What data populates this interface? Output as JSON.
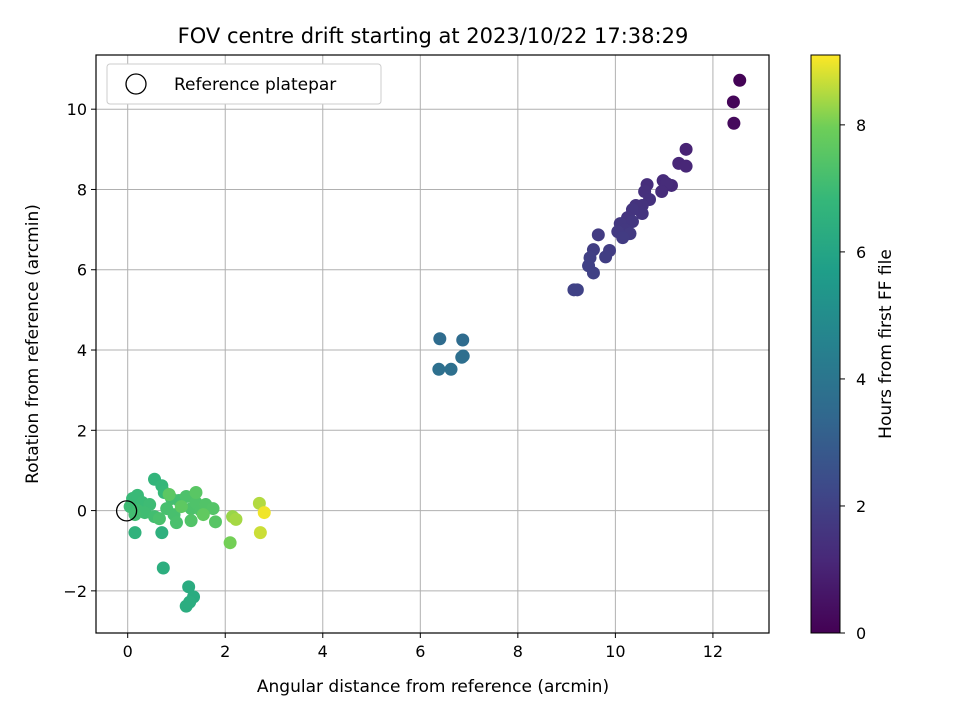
{
  "chart_data": {
    "type": "scatter",
    "title": "FOV centre drift starting at 2023/10/22 17:38:29",
    "xlabel": "Angular distance from reference (arcmin)",
    "ylabel": "Rotation from reference (arcmin)",
    "xlim": [
      -0.65,
      13.15
    ],
    "ylim": [
      -3.05,
      11.35
    ],
    "x_ticks": [
      0,
      2,
      4,
      6,
      8,
      10,
      12
    ],
    "y_ticks": [
      -2,
      0,
      2,
      4,
      6,
      8,
      10
    ],
    "grid": true,
    "legend": {
      "placement": "top-left",
      "entries": [
        "Reference platepar"
      ]
    },
    "reference_point": {
      "x": 0,
      "y": 0,
      "label": "Reference platepar"
    },
    "colorbar": {
      "label": "Hours from first FF file",
      "colormap": "viridis",
      "range": [
        0,
        9.1
      ],
      "ticks": [
        0,
        2,
        4,
        6,
        8
      ]
    },
    "points": [
      {
        "x": 12.55,
        "y": 10.72,
        "c": 0.05
      },
      {
        "x": 12.42,
        "y": 10.18,
        "c": 0.15
      },
      {
        "x": 12.43,
        "y": 9.65,
        "c": 0.25
      },
      {
        "x": 11.45,
        "y": 9.0,
        "c": 1.0
      },
      {
        "x": 11.3,
        "y": 8.65,
        "c": 1.1
      },
      {
        "x": 11.45,
        "y": 8.58,
        "c": 1.1
      },
      {
        "x": 11.15,
        "y": 8.1,
        "c": 1.2
      },
      {
        "x": 10.98,
        "y": 8.22,
        "c": 1.25
      },
      {
        "x": 11.05,
        "y": 8.15,
        "c": 1.3
      },
      {
        "x": 10.95,
        "y": 7.95,
        "c": 1.3
      },
      {
        "x": 10.65,
        "y": 8.12,
        "c": 1.35
      },
      {
        "x": 10.6,
        "y": 7.95,
        "c": 1.4
      },
      {
        "x": 10.7,
        "y": 7.75,
        "c": 1.45
      },
      {
        "x": 10.55,
        "y": 7.6,
        "c": 1.5
      },
      {
        "x": 10.42,
        "y": 7.6,
        "c": 1.5
      },
      {
        "x": 10.55,
        "y": 7.4,
        "c": 1.55
      },
      {
        "x": 10.35,
        "y": 7.5,
        "c": 1.6
      },
      {
        "x": 10.25,
        "y": 7.3,
        "c": 1.6
      },
      {
        "x": 10.35,
        "y": 7.2,
        "c": 1.65
      },
      {
        "x": 10.1,
        "y": 7.15,
        "c": 1.7
      },
      {
        "x": 10.2,
        "y": 7.0,
        "c": 1.7
      },
      {
        "x": 10.3,
        "y": 6.9,
        "c": 1.75
      },
      {
        "x": 10.05,
        "y": 6.95,
        "c": 1.75
      },
      {
        "x": 10.15,
        "y": 6.8,
        "c": 1.8
      },
      {
        "x": 9.65,
        "y": 6.87,
        "c": 1.8
      },
      {
        "x": 9.88,
        "y": 6.48,
        "c": 1.85
      },
      {
        "x": 9.8,
        "y": 6.32,
        "c": 1.9
      },
      {
        "x": 9.55,
        "y": 6.5,
        "c": 1.9
      },
      {
        "x": 9.48,
        "y": 6.3,
        "c": 1.95
      },
      {
        "x": 9.45,
        "y": 6.1,
        "c": 2.0
      },
      {
        "x": 9.55,
        "y": 5.92,
        "c": 2.0
      },
      {
        "x": 9.22,
        "y": 5.5,
        "c": 2.05
      },
      {
        "x": 9.15,
        "y": 5.5,
        "c": 2.05
      },
      {
        "x": 6.4,
        "y": 4.28,
        "c": 3.6
      },
      {
        "x": 6.87,
        "y": 4.25,
        "c": 3.6
      },
      {
        "x": 6.88,
        "y": 3.85,
        "c": 3.7
      },
      {
        "x": 6.85,
        "y": 3.82,
        "c": 3.7
      },
      {
        "x": 6.38,
        "y": 3.52,
        "c": 3.75
      },
      {
        "x": 6.63,
        "y": 3.52,
        "c": 3.75
      },
      {
        "x": 1.25,
        "y": -1.9,
        "c": 6.3
      },
      {
        "x": 1.35,
        "y": -2.15,
        "c": 6.3
      },
      {
        "x": 1.2,
        "y": -2.38,
        "c": 6.35
      },
      {
        "x": 1.27,
        "y": -2.28,
        "c": 6.35
      },
      {
        "x": 0.73,
        "y": -1.43,
        "c": 6.4
      },
      {
        "x": 0.7,
        "y": -0.55,
        "c": 6.5
      },
      {
        "x": 0.15,
        "y": -0.55,
        "c": 6.6
      },
      {
        "x": 0.55,
        "y": 0.78,
        "c": 6.7
      },
      {
        "x": 0.7,
        "y": 0.62,
        "c": 6.8
      },
      {
        "x": 0.75,
        "y": 0.45,
        "c": 6.85
      },
      {
        "x": 0.1,
        "y": 0.3,
        "c": 6.9
      },
      {
        "x": 0.2,
        "y": 0.38,
        "c": 6.9
      },
      {
        "x": 0.3,
        "y": 0.2,
        "c": 6.95
      },
      {
        "x": 0.45,
        "y": 0.15,
        "c": 7.0
      },
      {
        "x": 0.05,
        "y": 0.1,
        "c": 7.0
      },
      {
        "x": 0.2,
        "y": 0.0,
        "c": 7.05
      },
      {
        "x": 0.35,
        "y": -0.05,
        "c": 7.05
      },
      {
        "x": 0.55,
        "y": -0.15,
        "c": 7.1
      },
      {
        "x": 0.15,
        "y": -0.1,
        "c": 7.1
      },
      {
        "x": 0.9,
        "y": 0.3,
        "c": 7.15
      },
      {
        "x": 1.05,
        "y": 0.25,
        "c": 7.15
      },
      {
        "x": 0.8,
        "y": 0.05,
        "c": 7.2
      },
      {
        "x": 0.95,
        "y": -0.1,
        "c": 7.2
      },
      {
        "x": 1.0,
        "y": -0.3,
        "c": 7.25
      },
      {
        "x": 0.65,
        "y": -0.2,
        "c": 7.25
      },
      {
        "x": 1.2,
        "y": 0.35,
        "c": 7.3
      },
      {
        "x": 1.3,
        "y": 0.05,
        "c": 7.3
      },
      {
        "x": 1.4,
        "y": 0.2,
        "c": 7.35
      },
      {
        "x": 1.5,
        "y": 0.0,
        "c": 7.35
      },
      {
        "x": 1.3,
        "y": -0.25,
        "c": 7.4
      },
      {
        "x": 1.6,
        "y": 0.15,
        "c": 7.4
      },
      {
        "x": 1.75,
        "y": 0.05,
        "c": 7.45
      },
      {
        "x": 1.8,
        "y": -0.28,
        "c": 7.5
      },
      {
        "x": 1.4,
        "y": 0.45,
        "c": 7.55
      },
      {
        "x": 0.85,
        "y": 0.4,
        "c": 7.6
      },
      {
        "x": 1.1,
        "y": 0.1,
        "c": 7.65
      },
      {
        "x": 1.55,
        "y": -0.1,
        "c": 7.7
      },
      {
        "x": 2.1,
        "y": -0.8,
        "c": 8.0
      },
      {
        "x": 2.15,
        "y": -0.15,
        "c": 8.3
      },
      {
        "x": 2.22,
        "y": -0.22,
        "c": 8.4
      },
      {
        "x": 2.7,
        "y": 0.18,
        "c": 8.5
      },
      {
        "x": 2.72,
        "y": -0.55,
        "c": 8.7
      },
      {
        "x": 2.8,
        "y": -0.05,
        "c": 9.0
      }
    ]
  }
}
